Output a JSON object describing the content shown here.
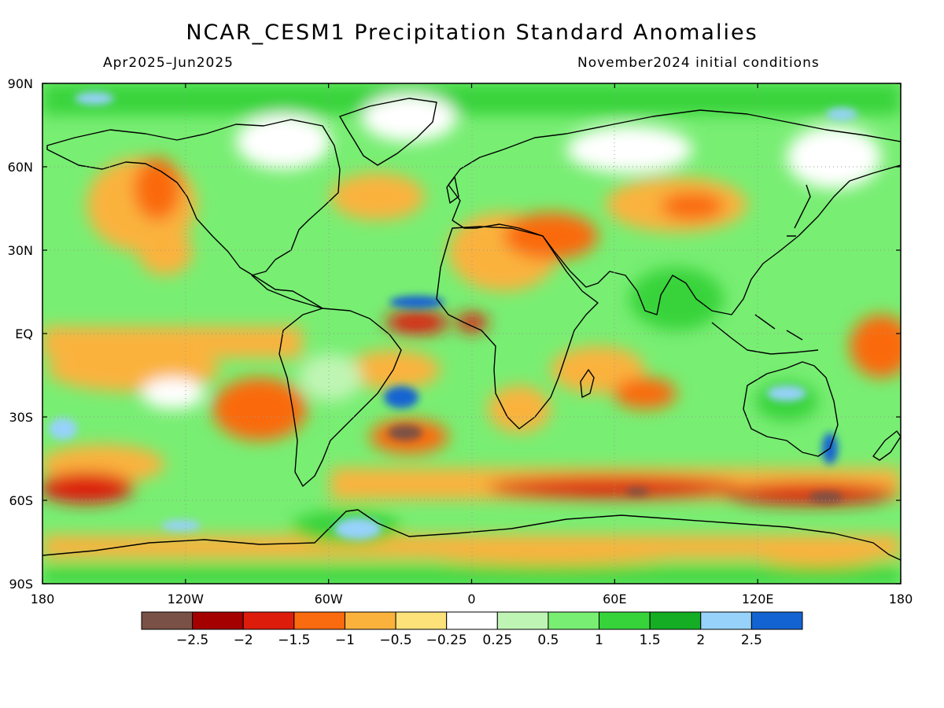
{
  "title": "NCAR_CESM1 Precipitation Standard Anomalies",
  "subtitle_left": "Apr2025–Jun2025",
  "subtitle_right": "November2024 initial conditions",
  "lat_ticks": [
    "90N",
    "60N",
    "30N",
    "EQ",
    "30S",
    "60S",
    "90S"
  ],
  "lon_ticks": [
    "180",
    "120W",
    "60W",
    "0",
    "60E",
    "120E",
    "180"
  ],
  "colorbar": {
    "colors": [
      "#7a5146",
      "#a50000",
      "#dd1c0c",
      "#fa6a0e",
      "#fab23c",
      "#fde27a",
      "#ffffff",
      "#bff5b4",
      "#78ee73",
      "#37d33b",
      "#14ad24",
      "#96d2fa",
      "#1463d2"
    ],
    "labels": [
      "−2.5",
      "−2",
      "−1.5",
      "−1",
      "−0.5",
      "−0.25",
      "0.25",
      "0.5",
      "1",
      "1.5",
      "2",
      "2.5"
    ]
  }
}
